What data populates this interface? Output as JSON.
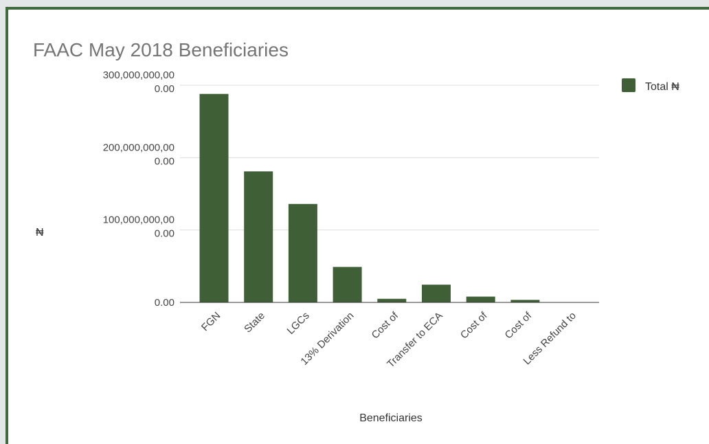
{
  "chart_data": {
    "type": "bar",
    "title": "FAAC May 2018 Beneficiaries",
    "xlabel": "Beneficiaries",
    "ylabel": "₦",
    "categories": [
      "FGN",
      "State",
      "LGCs",
      "13% Derivation",
      "Cost of",
      "Transfer to ECA",
      "Cost of",
      "Cost of",
      "Less Refund to"
    ],
    "series": [
      {
        "name": "Total ₦",
        "color": "#3f5f37",
        "values": [
          288000000000,
          181000000000,
          136000000000,
          49000000000,
          5000000000,
          24500000000,
          8000000000,
          3500000000,
          0
        ]
      }
    ],
    "ylim": [
      0,
      300000000000
    ],
    "yticks": [
      {
        "value": 0,
        "line1": "0.00",
        "line2": ""
      },
      {
        "value": 100000000000,
        "line1": "100,000,000,00",
        "line2": "0.00"
      },
      {
        "value": 200000000000,
        "line1": "200,000,000,00",
        "line2": "0.00"
      },
      {
        "value": 300000000000,
        "line1": "300,000,000,00",
        "line2": "0.00"
      }
    ],
    "grid": true,
    "legend_position": "right"
  },
  "colors": {
    "frame": "#3f6a3d",
    "bar": "#3f5f37",
    "gridline": "#dddddd",
    "baseline": "#333333"
  }
}
